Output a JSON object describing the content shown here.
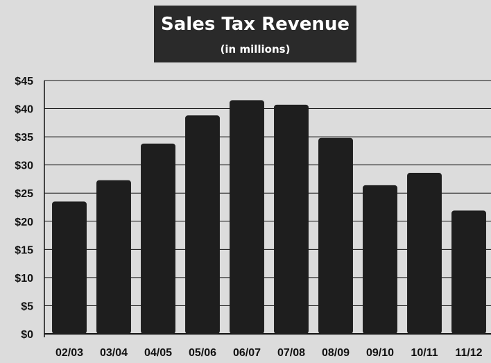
{
  "chart_data": {
    "type": "bar",
    "title": "Sales Tax Revenue",
    "subtitle": "(in millions)",
    "categories": [
      "02/03",
      "03/04",
      "04/05",
      "05/06",
      "06/07",
      "07/08",
      "08/09",
      "09/10",
      "10/11",
      "11/12"
    ],
    "values": [
      23.5,
      27.3,
      33.8,
      38.8,
      41.5,
      40.7,
      34.8,
      26.4,
      28.6,
      21.9
    ],
    "ylim": [
      0,
      45
    ],
    "yticks": [
      "$0",
      "$5",
      "$10",
      "$15",
      "$20",
      "$25",
      "$30",
      "$35",
      "$40",
      "$45"
    ],
    "grid": true,
    "colors": {
      "bar": "#1e1e1e",
      "title_bg": "#2a2a2a",
      "grid": "#111111"
    }
  }
}
